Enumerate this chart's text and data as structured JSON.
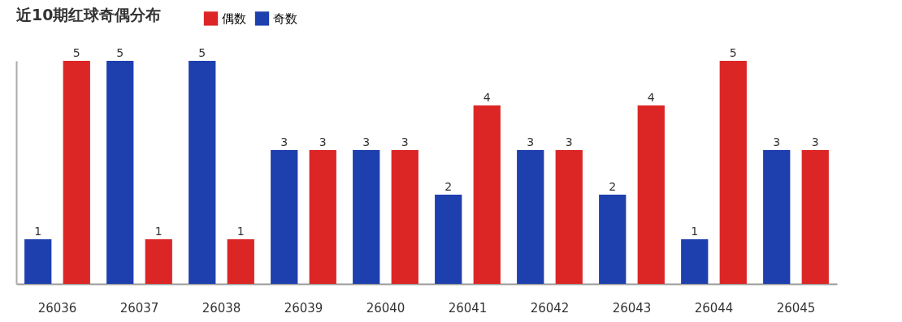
{
  "chart_data": {
    "type": "bar",
    "title": "近10期红球奇偶分布",
    "categories": [
      "26036",
      "26037",
      "26038",
      "26039",
      "26040",
      "26041",
      "26042",
      "26043",
      "26044",
      "26045"
    ],
    "series": [
      {
        "name": "偶数",
        "color": "#dc2626",
        "values": [
          5,
          1,
          1,
          3,
          3,
          4,
          3,
          4,
          5,
          3
        ]
      },
      {
        "name": "奇数",
        "color": "#1e3fae",
        "values": [
          1,
          5,
          5,
          3,
          3,
          2,
          3,
          2,
          1,
          3
        ]
      }
    ],
    "ylim": [
      0,
      5
    ],
    "tick_labels": "x",
    "data_labels": true,
    "legend": "top",
    "grid": false
  }
}
